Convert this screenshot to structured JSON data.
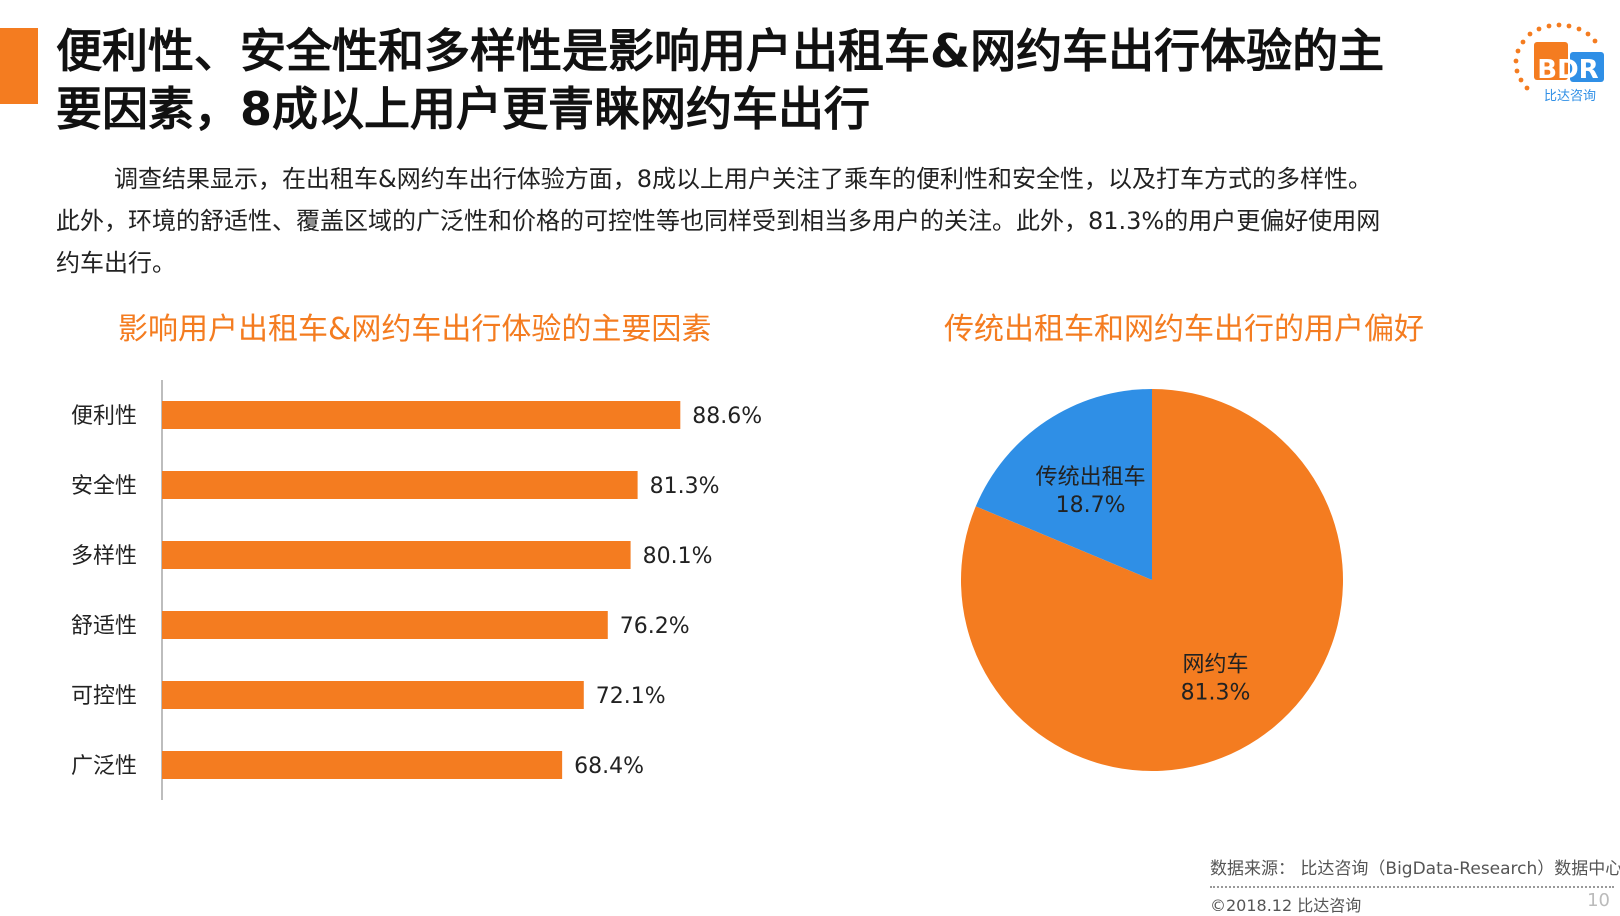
{
  "header": {
    "title_line1": "便利性、安全性和多样性是影响用户出租车&网约车出行体验的主",
    "title_line2": "要因素，8成以上用户更青睐网约车出行"
  },
  "logo": {
    "text": "BDR",
    "subtext": "比达咨询",
    "colors": {
      "orange": "#f47c20",
      "blue": "#2f8fe6"
    }
  },
  "intro": {
    "line1": "调查结果显示，在出租车&网约车出行体验方面，8成以上用户关注了乘车的便利性和安全性，以及打车方式的多样性。",
    "line2": "此外，环境的舒适性、覆盖区域的广泛性和价格的可控性等也同样受到相当多用户的关注。此外，81.3%的用户更偏好使用网",
    "line3": "约车出行。"
  },
  "chart_data": [
    {
      "type": "bar",
      "orientation": "horizontal",
      "title": "影响用户出租车&网约车出行体验的主要因素",
      "categories": [
        "便利性",
        "安全性",
        "多样性",
        "舒适性",
        "可控性",
        "广泛性"
      ],
      "values": [
        88.6,
        81.3,
        80.1,
        76.2,
        72.1,
        68.4
      ],
      "data_labels": [
        "88.6%",
        "81.3%",
        "80.1%",
        "76.2%",
        "72.1%",
        "68.4%"
      ],
      "unit": "%",
      "xlim": [
        0,
        100
      ],
      "grid": false,
      "color": "#f47c20"
    },
    {
      "type": "pie",
      "title": "传统出租车和网约车出行的用户偏好",
      "slices": [
        {
          "label": "传统出租车",
          "value": 18.7,
          "display": "18.7%",
          "color": "#2f8fe6"
        },
        {
          "label": "网约车",
          "value": 81.3,
          "display": "81.3%",
          "color": "#f47c20"
        }
      ]
    }
  ],
  "footer": {
    "source": "数据来源： 比达咨询（BigData-Research）数据中心",
    "copyright": "©2018.12 比达咨询",
    "page": "10"
  }
}
